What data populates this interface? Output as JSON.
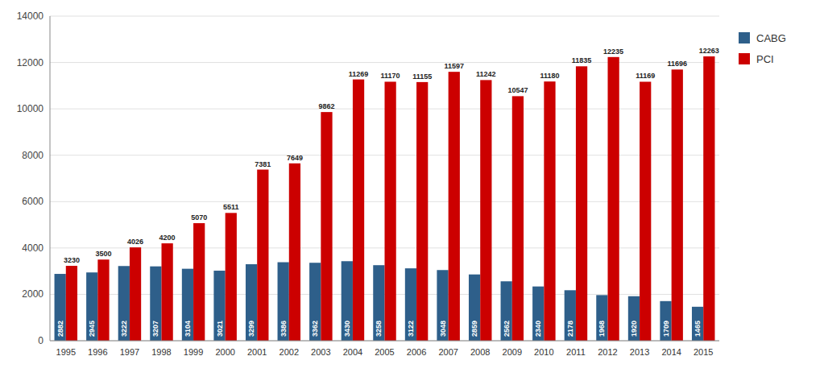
{
  "chart_data": {
    "type": "bar",
    "categories": [
      "1995",
      "1996",
      "1997",
      "1998",
      "1999",
      "2000",
      "2001",
      "2002",
      "2003",
      "2004",
      "2005",
      "2006",
      "2007",
      "2008",
      "2009",
      "2010",
      "2011",
      "2012",
      "2013",
      "2014",
      "2015"
    ],
    "series": [
      {
        "name": "CABG",
        "color": "#2E5F8A",
        "values": [
          2882,
          2945,
          3222,
          3207,
          3104,
          3021,
          3299,
          3386,
          3362,
          3430,
          3258,
          3122,
          3048,
          2859,
          2562,
          2340,
          2178,
          1968,
          1920,
          1709,
          1465
        ]
      },
      {
        "name": "PCI",
        "color": "#CC0000",
        "values": [
          3230,
          3500,
          4026,
          4200,
          5070,
          5511,
          7381,
          7649,
          9862,
          11269,
          11170,
          11155,
          11597,
          11242,
          10547,
          11180,
          11835,
          12235,
          11169,
          11696,
          12263
        ]
      }
    ],
    "ylim": [
      0,
      14000
    ],
    "yticks": [
      0,
      2000,
      4000,
      6000,
      8000,
      10000,
      12000,
      14000
    ],
    "grid": true,
    "legend": "right",
    "data_labels": true
  }
}
